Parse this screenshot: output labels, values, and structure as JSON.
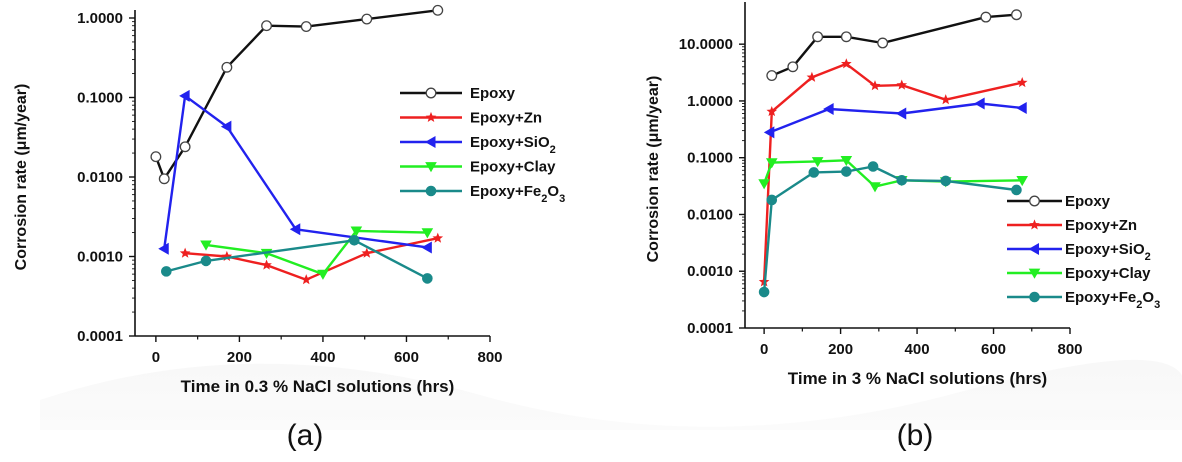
{
  "chart_data": [
    {
      "type": "line",
      "panel_label": "(a)",
      "xlabel": "Time in 0.3 % NaCl solutions (hrs)",
      "ylabel": "Corrosion rate (μm/year)",
      "y_scale": "log",
      "xlim": [
        -50,
        800
      ],
      "ylim": [
        0.0001,
        1.0
      ],
      "x_ticks": [
        0,
        200,
        400,
        600,
        800
      ],
      "x_tick_labels": [
        "0",
        "200",
        "400",
        "600",
        "800"
      ],
      "y_ticks": [
        0.0001,
        0.001,
        0.01,
        0.1,
        1.0
      ],
      "y_tick_labels": [
        "0.0001",
        "0.0010",
        "0.0100",
        "0.1000",
        "1.0000"
      ],
      "grid": false,
      "legend_position": "right",
      "series": [
        {
          "name": "Epoxy",
          "color": "#111111",
          "marker": "open-circle",
          "x": [
            0,
            20,
            70,
            170,
            265,
            360,
            505,
            675
          ],
          "y": [
            0.018,
            0.0095,
            0.024,
            0.24,
            0.8,
            0.78,
            0.97,
            1.25
          ]
        },
        {
          "name": "Epoxy+Zn",
          "color": "#ee2020",
          "marker": "star",
          "x": [
            70,
            170,
            265,
            360,
            505,
            675
          ],
          "y": [
            0.0011,
            0.001,
            0.00078,
            0.00051,
            0.0011,
            0.0017
          ]
        },
        {
          "name": "Epoxy+SiO",
          "subscript": "2",
          "color": "#2222ee",
          "marker": "triangle-left",
          "x": [
            20,
            70,
            170,
            335,
            650
          ],
          "y": [
            0.00125,
            0.105,
            0.043,
            0.0022,
            0.0013
          ]
        },
        {
          "name": "Epoxy+Clay",
          "color": "#22ee22",
          "marker": "triangle-down",
          "x": [
            120,
            265,
            400,
            480,
            650
          ],
          "y": [
            0.0014,
            0.0011,
            0.0006,
            0.0021,
            0.002
          ]
        },
        {
          "name": "Epoxy+Fe",
          "subscript": "2",
          "suffix": "O",
          "suffix_sub": "3",
          "color": "#1a8a8a",
          "marker": "filled-circle",
          "x": [
            25,
            120,
            475,
            650
          ],
          "y": [
            0.00065,
            0.00088,
            0.0016,
            0.00053
          ]
        }
      ]
    },
    {
      "type": "line",
      "panel_label": "(b)",
      "xlabel": "Time in 3 % NaCl solutions (hrs)",
      "ylabel": "Corrosion rate (μm/year)",
      "y_scale": "log",
      "xlim": [
        -50,
        800
      ],
      "ylim": [
        0.0001,
        40
      ],
      "x_ticks": [
        0,
        200,
        400,
        600,
        800
      ],
      "x_tick_labels": [
        "0",
        "200",
        "400",
        "600",
        "800"
      ],
      "y_ticks": [
        0.0001,
        0.001,
        0.01,
        0.1,
        1.0,
        10.0
      ],
      "y_tick_labels": [
        "0.0001",
        "0.0010",
        "0.0100",
        "0.1000",
        "1.0000",
        "10.0000"
      ],
      "grid": false,
      "legend_position": "bottom-right",
      "series": [
        {
          "name": "Epoxy",
          "color": "#111111",
          "marker": "open-circle",
          "x": [
            20,
            75,
            140,
            215,
            310,
            580,
            660
          ],
          "y": [
            2.8,
            4.0,
            13.5,
            13.5,
            10.5,
            30,
            33
          ]
        },
        {
          "name": "Epoxy+Zn",
          "color": "#ee2020",
          "marker": "star",
          "x": [
            0,
            20,
            125,
            215,
            290,
            360,
            475,
            675
          ],
          "y": [
            0.00065,
            0.65,
            2.6,
            4.5,
            1.85,
            1.9,
            1.05,
            2.1
          ]
        },
        {
          "name": "Epoxy+SiO",
          "subscript": "2",
          "color": "#2222ee",
          "marker": "triangle-left",
          "x": [
            15,
            170,
            360,
            565,
            675
          ],
          "y": [
            0.28,
            0.72,
            0.6,
            0.9,
            0.75
          ]
        },
        {
          "name": "Epoxy+Clay",
          "color": "#22ee22",
          "marker": "triangle-down",
          "x": [
            0,
            20,
            140,
            215,
            290,
            360,
            475,
            675
          ],
          "y": [
            0.035,
            0.082,
            0.086,
            0.09,
            0.031,
            0.04,
            0.038,
            0.04
          ]
        },
        {
          "name": "Epoxy+Fe",
          "subscript": "2",
          "suffix": "O",
          "suffix_sub": "3",
          "color": "#1a8a8a",
          "marker": "filled-circle",
          "x": [
            0,
            20,
            130,
            215,
            285,
            360,
            475,
            660
          ],
          "y": [
            0.00043,
            0.018,
            0.055,
            0.057,
            0.07,
            0.04,
            0.039,
            0.027
          ]
        }
      ]
    }
  ]
}
